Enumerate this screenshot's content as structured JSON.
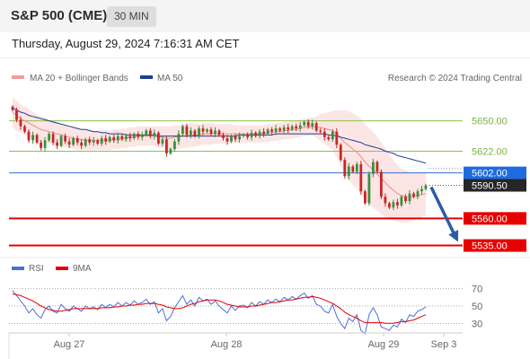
{
  "header": {
    "symbol": "S&P 500 (CME)",
    "timeframe": "30 MIN",
    "timestamp": "Thursday, August 29, 2024 7:16:31 AM CET"
  },
  "legend": {
    "item1": "MA 20 + Bollinger Bands",
    "item2": "MA 50",
    "copyright": "Research © 2024 Trading Central"
  },
  "rsi_legend": {
    "item1": "RSI",
    "item2": "9MA"
  },
  "colors": {
    "up_candle": "#3c8f3c",
    "down_candle": "#c62828",
    "ma20_band": "#f59a9a",
    "ma50": "#1d3f8f",
    "resistance": "#8bc34a",
    "current_line": "#2f6fcf",
    "support": "#e60000",
    "arrow": "#2b5ca8",
    "rsi": "#4b6fd6",
    "rsi_ma": "#e00000"
  },
  "chart_data": [
    {
      "type": "candlestick",
      "x_labels": [
        "Aug 27",
        "Aug 28",
        "Aug 29",
        "Sep 3"
      ],
      "levels": [
        {
          "value": 5650.0,
          "label": "5650.00",
          "kind": "resistance"
        },
        {
          "value": 5622.0,
          "label": "5622.00",
          "kind": "resistance"
        },
        {
          "value": 5602.0,
          "label": "5602.00",
          "kind": "pivot"
        },
        {
          "value": 5590.5,
          "label": "5590.50",
          "kind": "last"
        },
        {
          "value": 5560.0,
          "label": "5560.00",
          "kind": "support"
        },
        {
          "value": 5535.0,
          "label": "5535.00",
          "kind": "support"
        }
      ],
      "ylim": [
        5528,
        5682
      ],
      "last_price": 5590.5,
      "closes": [
        5660,
        5651,
        5645,
        5640,
        5632,
        5637,
        5630,
        5625,
        5632,
        5638,
        5630,
        5627,
        5636,
        5631,
        5628,
        5634,
        5630,
        5627,
        5633,
        5630,
        5632,
        5629,
        5634,
        5631,
        5635,
        5632,
        5636,
        5633,
        5636,
        5634,
        5638,
        5635,
        5637,
        5641,
        5636,
        5639,
        5629,
        5633,
        5620,
        5624,
        5631,
        5638,
        5645,
        5637,
        5641,
        5636,
        5643,
        5640,
        5642,
        5638,
        5641,
        5637,
        5634,
        5631,
        5636,
        5633,
        5636,
        5637,
        5635,
        5639,
        5636,
        5640,
        5638,
        5642,
        5640,
        5643,
        5641,
        5644,
        5642,
        5645,
        5643,
        5646,
        5649,
        5645,
        5648,
        5641,
        5640,
        5635,
        5633,
        5640,
        5628,
        5614,
        5599,
        5608,
        5603,
        5610,
        5585,
        5574,
        5601,
        5612,
        5603,
        5580,
        5574,
        5570,
        5575,
        5572,
        5580,
        5576,
        5583,
        5580,
        5585,
        5587,
        5590.5
      ],
      "ma20": [
        5658,
        5655,
        5652,
        5650,
        5648,
        5646,
        5644,
        5642,
        5641,
        5640,
        5639,
        5638,
        5637,
        5636,
        5635,
        5634,
        5633,
        5633,
        5632,
        5632,
        5632,
        5632,
        5632,
        5632,
        5632,
        5633,
        5633,
        5634,
        5634,
        5635,
        5635,
        5636,
        5636,
        5636,
        5636,
        5636,
        5635,
        5635,
        5634,
        5634,
        5635,
        5635,
        5636,
        5636,
        5637,
        5637,
        5637,
        5638,
        5638,
        5638,
        5638,
        5638,
        5638,
        5638,
        5638,
        5638,
        5638,
        5638,
        5638,
        5638,
        5638,
        5638,
        5638,
        5639,
        5639,
        5640,
        5640,
        5641,
        5641,
        5642,
        5642,
        5643,
        5644,
        5644,
        5645,
        5644,
        5644,
        5643,
        5642,
        5641,
        5638,
        5634,
        5630,
        5627,
        5624,
        5621,
        5617,
        5612,
        5608,
        5605,
        5601,
        5597,
        5593,
        5589,
        5586,
        5583,
        5581,
        5580,
        5580,
        5580,
        5581,
        5582,
        5583
      ],
      "ma50": [
        5662,
        5660,
        5658,
        5657,
        5655,
        5654,
        5653,
        5652,
        5651,
        5650,
        5649,
        5648,
        5647,
        5646,
        5645,
        5644,
        5643,
        5642,
        5642,
        5641,
        5640,
        5640,
        5639,
        5639,
        5638,
        5638,
        5638,
        5638,
        5637,
        5637,
        5637,
        5637,
        5637,
        5637,
        5637,
        5637,
        5636,
        5636,
        5636,
        5636,
        5636,
        5636,
        5636,
        5636,
        5636,
        5636,
        5636,
        5636,
        5636,
        5636,
        5636,
        5636,
        5636,
        5636,
        5636,
        5636,
        5637,
        5637,
        5637,
        5637,
        5637,
        5637,
        5637,
        5637,
        5637,
        5638,
        5638,
        5638,
        5638,
        5638,
        5638,
        5638,
        5638,
        5638,
        5638,
        5638,
        5638,
        5638,
        5637,
        5637,
        5636,
        5635,
        5634,
        5633,
        5632,
        5631,
        5630,
        5628,
        5627,
        5626,
        5625,
        5624,
        5622,
        5621,
        5620,
        5618,
        5617,
        5616,
        5615,
        5614,
        5613,
        5612,
        5611
      ],
      "band_width": [
        14,
        14,
        13,
        13,
        13,
        12,
        12,
        12,
        12,
        11,
        11,
        11,
        11,
        10,
        10,
        10,
        10,
        10,
        9,
        9,
        9,
        9,
        9,
        9,
        9,
        9,
        9,
        9,
        9,
        9,
        9,
        9,
        9,
        9,
        9,
        9,
        10,
        10,
        11,
        11,
        11,
        11,
        11,
        11,
        11,
        11,
        10,
        10,
        10,
        10,
        9,
        9,
        9,
        9,
        9,
        8,
        8,
        8,
        8,
        8,
        8,
        8,
        8,
        8,
        8,
        8,
        8,
        8,
        8,
        8,
        8,
        8,
        8,
        8,
        8,
        10,
        12,
        14,
        16,
        18,
        22,
        26,
        30,
        32,
        33,
        34,
        35,
        35,
        35,
        35,
        34,
        33,
        32,
        30,
        28,
        26,
        25,
        24,
        23,
        22,
        21,
        21,
        20
      ],
      "projection": {
        "from": 5590.5,
        "to": 5535.0
      }
    },
    {
      "type": "line",
      "name": "RSI",
      "ylim": [
        20,
        80
      ],
      "ticks": [
        70,
        50,
        30
      ],
      "values": [
        68,
        62,
        56,
        50,
        42,
        47,
        40,
        36,
        46,
        50,
        44,
        42,
        52,
        47,
        44,
        50,
        47,
        44,
        50,
        47,
        49,
        46,
        52,
        48,
        52,
        49,
        54,
        50,
        54,
        51,
        56,
        52,
        54,
        58,
        52,
        55,
        42,
        47,
        33,
        38,
        48,
        55,
        62,
        52,
        57,
        50,
        60,
        56,
        58,
        52,
        56,
        50,
        46,
        42,
        50,
        45,
        50,
        51,
        48,
        54,
        50,
        55,
        52,
        57,
        54,
        58,
        55,
        60,
        57,
        61,
        58,
        62,
        65,
        59,
        62,
        52,
        50,
        44,
        42,
        52,
        38,
        30,
        24,
        36,
        32,
        40,
        22,
        18,
        40,
        48,
        40,
        26,
        24,
        22,
        28,
        26,
        35,
        31,
        40,
        38,
        44,
        46,
        49
      ],
      "ma9": [
        64,
        63,
        62,
        60,
        58,
        56,
        53,
        50,
        48,
        46,
        45,
        44,
        44,
        45,
        46,
        47,
        47,
        47,
        47,
        47,
        47,
        47,
        48,
        48,
        48,
        49,
        49,
        50,
        50,
        51,
        51,
        52,
        52,
        53,
        53,
        53,
        52,
        51,
        49,
        48,
        47,
        47,
        48,
        50,
        52,
        53,
        55,
        56,
        57,
        57,
        57,
        56,
        54,
        52,
        51,
        50,
        49,
        49,
        49,
        50,
        50,
        51,
        52,
        53,
        54,
        54,
        55,
        56,
        57,
        57,
        58,
        59,
        60,
        60,
        61,
        60,
        59,
        57,
        55,
        53,
        50,
        47,
        43,
        40,
        38,
        36,
        33,
        31,
        31,
        31,
        31,
        31,
        30,
        30,
        30,
        31,
        32,
        32,
        33,
        34,
        36,
        38,
        40
      ]
    }
  ]
}
